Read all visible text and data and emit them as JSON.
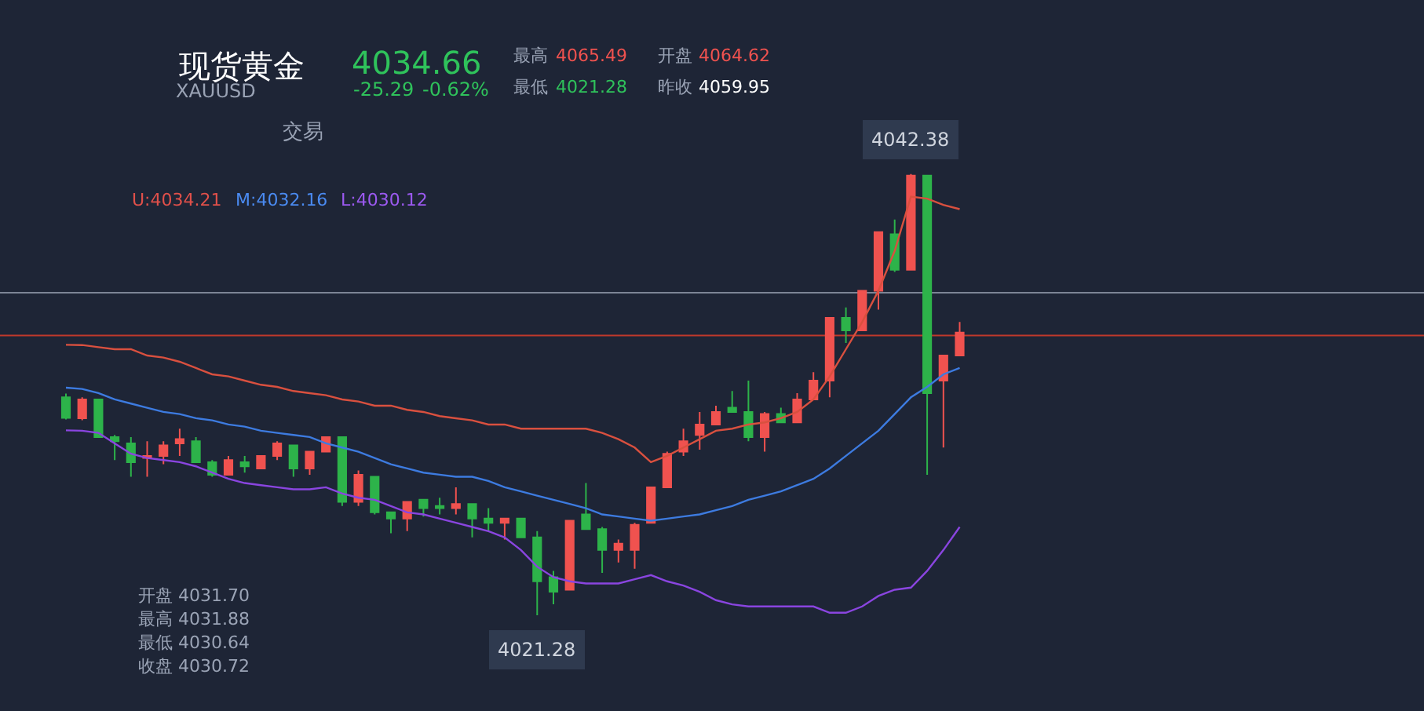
{
  "chart_data": {
    "type": "candlestick",
    "categories": [
      null,
      null,
      null,
      null,
      null,
      null,
      null,
      null,
      null,
      null,
      null,
      null,
      null,
      null,
      null,
      null,
      null,
      null,
      null,
      null,
      null,
      null,
      null,
      null,
      null,
      null,
      null,
      null,
      null,
      null,
      null,
      null,
      null,
      null,
      null,
      null,
      null,
      null,
      null,
      null,
      null,
      null,
      null,
      null,
      null,
      null,
      null,
      null,
      null,
      null,
      null,
      null,
      null,
      null,
      null,
      null
    ],
    "ohlc": [
      [
        4031.7,
        4031.88,
        4030.64,
        4030.72
      ],
      [
        4030.7,
        4031.7,
        4030.6,
        4031.6
      ],
      [
        4031.6,
        4031.6,
        4029.8,
        4029.8
      ],
      [
        4029.8,
        4029.9,
        4028.7,
        4029.6
      ],
      [
        4029.5,
        4029.8,
        4027.9,
        4028.6
      ],
      [
        4028.8,
        4029.6,
        4027.9,
        4028.9
      ],
      [
        4028.9,
        4029.6,
        4028.5,
        4029.4
      ],
      [
        4029.5,
        4030.2,
        4028.9,
        4029.7
      ],
      [
        4029.6,
        4029.8,
        4028.6,
        4028.6
      ],
      [
        4028.6,
        4028.7,
        4027.9,
        4028.0
      ],
      [
        4028.0,
        4028.9,
        4028.0,
        4028.7
      ],
      [
        4028.6,
        4028.9,
        4028.1,
        4028.4
      ],
      [
        4028.3,
        4028.9,
        4028.3,
        4028.9
      ],
      [
        4028.9,
        4029.6,
        4028.7,
        4029.5
      ],
      [
        4029.4,
        4029.4,
        4027.9,
        4028.3
      ],
      [
        4028.3,
        4029.1,
        4028.0,
        4029.1
      ],
      [
        4029.1,
        4029.8,
        4029.1,
        4029.8
      ],
      [
        4029.8,
        4029.8,
        4026.5,
        4026.7
      ],
      [
        4026.7,
        4028.2,
        4026.5,
        4028.0
      ],
      [
        4027.9,
        4027.9,
        4026.1,
        4026.2
      ],
      [
        4026.2,
        4026.2,
        4025.2,
        4025.9
      ],
      [
        4025.9,
        4026.7,
        4025.3,
        4026.7
      ],
      [
        4026.8,
        4026.8,
        4026.0,
        4026.4
      ],
      [
        4026.5,
        4026.9,
        4026.1,
        4026.4
      ],
      [
        4026.4,
        4027.4,
        4026.1,
        4026.6
      ],
      [
        4026.6,
        4026.6,
        4025.0,
        4025.9
      ],
      [
        4025.9,
        4026.4,
        4025.3,
        4025.7
      ],
      [
        4025.7,
        4025.9,
        4024.9,
        4025.9
      ],
      [
        4025.9,
        4025.9,
        4025.0,
        4025.0
      ],
      [
        4025.0,
        4025.3,
        4021.28,
        4022.9
      ],
      [
        4023.1,
        4023.4,
        4021.8,
        4022.4
      ],
      [
        4022.5,
        4025.8,
        4022.5,
        4025.8
      ],
      [
        4026.1,
        4027.6,
        4025.4,
        4025.4
      ],
      [
        4025.4,
        4025.5,
        4023.3,
        4024.4
      ],
      [
        4024.4,
        4024.9,
        4023.8,
        4024.7
      ],
      [
        4024.4,
        4025.7,
        4023.5,
        4025.6
      ],
      [
        4025.7,
        4027.4,
        4025.7,
        4027.4
      ],
      [
        4027.4,
        4029.1,
        4027.4,
        4029.0
      ],
      [
        4029.1,
        4030.2,
        4028.9,
        4029.6
      ],
      [
        4029.9,
        4031.0,
        4029.2,
        4030.4
      ],
      [
        4030.4,
        4031.3,
        4030.4,
        4031.0
      ],
      [
        4031.2,
        4032.0,
        4031.0,
        4031.0
      ],
      [
        4031.0,
        4032.5,
        4029.6,
        4029.8
      ],
      [
        4029.8,
        4031.0,
        4029.1,
        4030.9
      ],
      [
        4030.9,
        4031.2,
        4030.5,
        4030.5
      ],
      [
        4030.5,
        4031.9,
        4030.5,
        4031.6
      ],
      [
        4031.6,
        4032.9,
        4031.6,
        4032.5
      ],
      [
        4032.5,
        4035.5,
        4031.7,
        4035.5
      ],
      [
        4035.5,
        4036.0,
        4034.3,
        4034.9
      ],
      [
        4034.9,
        4036.8,
        4034.9,
        4036.8
      ],
      [
        4036.8,
        4039.6,
        4035.9,
        4039.6
      ],
      [
        4039.5,
        4040.2,
        4037.7,
        4037.8
      ],
      [
        4037.8,
        4042.38,
        4037.8,
        4042.3
      ],
      [
        4042.3,
        4042.3,
        4028.0,
        4031.9
      ],
      [
        4032.5,
        4033.7,
        4029.3,
        4033.7
      ],
      [
        4033.7,
        4035.3,
        4033.7,
        4034.8
      ]
    ],
    "colors": [
      "#2db34a",
      "#f0524f",
      "#2db34a",
      "#2db34a",
      "#2db34a",
      "#f0524f",
      "#f0524f",
      "#f0524f",
      "#2db34a",
      "#2db34a",
      "#f0524f",
      "#2db34a",
      "#f0524f",
      "#f0524f",
      "#2db34a",
      "#f0524f",
      "#f0524f",
      "#2db34a",
      "#f0524f",
      "#2db34a",
      "#2db34a",
      "#f0524f",
      "#2db34a",
      "#2db34a",
      "#f0524f",
      "#2db34a",
      "#2db34a",
      "#f0524f",
      "#2db34a",
      "#2db34a",
      "#2db34a",
      "#f0524f",
      "#2db34a",
      "#2db34a",
      "#f0524f",
      "#f0524f",
      "#f0524f",
      "#f0524f",
      "#f0524f",
      "#f0524f",
      "#f0524f",
      "#2db34a",
      "#2db34a",
      "#f0524f",
      "#2db34a",
      "#f0524f",
      "#f0524f",
      "#f0524f",
      "#2db34a",
      "#f0524f",
      "#f0524f",
      "#2db34a",
      "#f0524f",
      "#2db34a",
      "#f0524f",
      "#f0524f"
    ],
    "series": [
      {
        "type": "line",
        "color": "#d9503f",
        "values": [
          4034.21,
          4034.2,
          4034.1,
          4034.0,
          4034.0,
          4033.7,
          4033.6,
          4033.4,
          4033.1,
          4032.8,
          4032.7,
          4032.5,
          4032.3,
          4032.2,
          4032.0,
          4031.9,
          4031.8,
          4031.6,
          4031.5,
          4031.3,
          4031.3,
          4031.1,
          4031.0,
          4030.8,
          4030.7,
          4030.6,
          4030.4,
          4030.4,
          4030.2,
          4030.2,
          4030.2,
          4030.2,
          4030.2,
          4030.0,
          4029.7,
          4029.3,
          4028.6,
          4028.9,
          4029.3,
          4029.7,
          4030.1,
          4030.2,
          4030.4,
          4030.5,
          4030.7,
          4031.0,
          4031.6,
          4032.7,
          4034.0,
          4035.3,
          4036.8,
          4038.7,
          4041.3,
          4041.2,
          4040.9,
          4040.7
        ]
      },
      {
        "type": "line",
        "color": "#3d7be0",
        "values": [
          4032.16,
          4032.1,
          4031.9,
          4031.6,
          4031.4,
          4031.2,
          4031.0,
          4030.9,
          4030.7,
          4030.6,
          4030.4,
          4030.3,
          4030.1,
          4030.0,
          4029.9,
          4029.8,
          4029.5,
          4029.3,
          4029.1,
          4028.8,
          4028.5,
          4028.3,
          4028.1,
          4028.0,
          4027.9,
          4027.9,
          4027.7,
          4027.4,
          4027.2,
          4027.0,
          4026.8,
          4026.6,
          4026.4,
          4026.1,
          4026.0,
          4025.9,
          4025.8,
          4025.9,
          4026.0,
          4026.1,
          4026.3,
          4026.5,
          4026.8,
          4027.0,
          4027.2,
          4027.5,
          4027.8,
          4028.3,
          4028.9,
          4029.5,
          4030.1,
          4030.9,
          4031.7,
          4032.2,
          4032.8,
          4033.1
        ]
      },
      {
        "type": "line",
        "color": "#8a45e0",
        "values": [
          4030.12,
          4030.1,
          4030.0,
          4029.5,
          4029.0,
          4028.8,
          4028.7,
          4028.6,
          4028.4,
          4028.1,
          4027.8,
          4027.6,
          4027.5,
          4027.4,
          4027.3,
          4027.3,
          4027.4,
          4027.1,
          4026.9,
          4026.8,
          4026.5,
          4026.2,
          4026.1,
          4025.9,
          4025.7,
          4025.5,
          4025.3,
          4025.0,
          4024.4,
          4023.6,
          4023.1,
          4022.9,
          4022.8,
          4022.8,
          4022.8,
          4023.0,
          4023.2,
          4022.9,
          4022.7,
          4022.4,
          4022.0,
          4021.8,
          4021.7,
          4021.7,
          4021.7,
          4021.7,
          4021.7,
          4021.4,
          4021.4,
          4021.7,
          4022.2,
          4022.5,
          4022.6,
          4023.4,
          4024.4,
          4025.5
        ]
      }
    ],
    "ylim": [
      4016.7,
      4050.7
    ],
    "tick_labels": false,
    "ref_lines": [
      {
        "axis": "y",
        "value": 4034.66,
        "color": "#c0392b"
      },
      {
        "axis": "y",
        "value": 4036.7,
        "color": "#7d8596"
      }
    ],
    "annotations": [
      "现货黄金",
      "XAUUSD",
      "4034.66",
      "-25.29",
      "-0.62%",
      "最高",
      "4065.49",
      "开盘",
      "4064.62",
      "最低",
      "4021.28",
      "昨收",
      "4059.95",
      "交易",
      "U:4034.21",
      "M:4032.16",
      "L:4030.12",
      "开盘 4031.70",
      "最高 4031.88",
      "最低 4030.64",
      "收盘 4030.72",
      {
        "text": "4042.38",
        "y": 4042.38
      },
      {
        "text": "4021.28",
        "y": 4021.28
      }
    ]
  }
}
